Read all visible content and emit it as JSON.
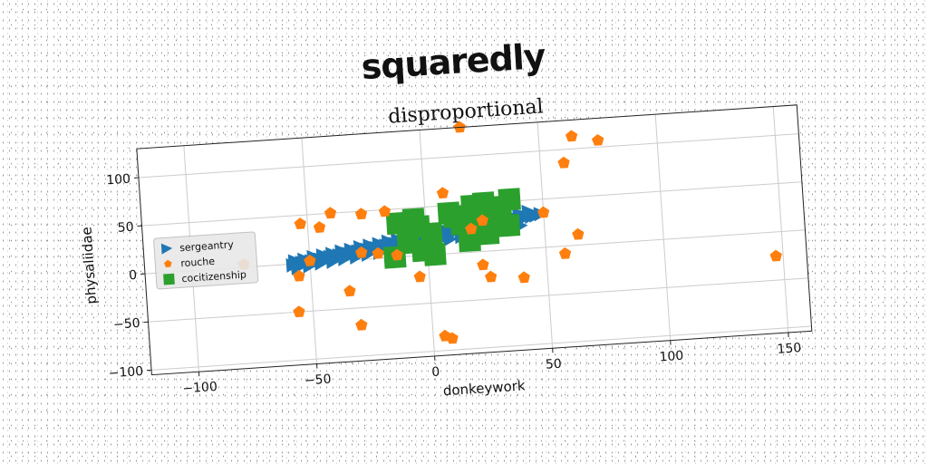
{
  "page": {
    "heading": "squaredly"
  },
  "chart_data": {
    "type": "scatter",
    "title": "disproportional",
    "xlabel": "donkeywork",
    "ylabel": "physaliidae",
    "xlim": [
      -120,
      160
    ],
    "ylim": [
      -105,
      130
    ],
    "xticks": [
      -100,
      -50,
      0,
      50,
      100,
      150
    ],
    "yticks": [
      -100,
      -50,
      0,
      50,
      100
    ],
    "xtick_labels": [
      "−100",
      "−50",
      "0",
      "50",
      "100",
      "150"
    ],
    "ytick_labels": [
      "−100",
      "−50",
      "0",
      "50",
      "100"
    ],
    "grid": true,
    "legend_position": "center-left",
    "series": [
      {
        "name": "sergeantry",
        "marker": "triangle-right",
        "color": "#1f77b4",
        "x": [
          -57,
          -55,
          -53,
          -51,
          -49,
          -47,
          -45,
          -43,
          -41,
          -39,
          -37,
          -35,
          -33,
          -31,
          -29,
          -27,
          -25,
          -23,
          -21,
          -19,
          -17,
          -15,
          -13,
          -11,
          -9,
          -7,
          -5,
          -3,
          -1,
          1,
          3,
          5,
          7,
          9,
          11,
          13,
          15,
          17,
          19,
          21,
          23,
          25,
          27,
          29,
          31,
          33,
          35,
          37,
          39,
          41,
          43,
          45,
          47,
          49,
          -56,
          -52,
          -48,
          -44,
          -40,
          -36,
          -32,
          -28,
          -24,
          -20,
          -16,
          -12,
          -8,
          -4,
          0,
          4,
          8,
          12,
          16,
          20,
          24,
          28,
          32,
          36,
          40,
          44,
          -55,
          -50,
          -45,
          -40,
          -35,
          -30,
          -25,
          -20,
          -15,
          -10,
          -5,
          0,
          5,
          10,
          15,
          20,
          25,
          30,
          35,
          40
        ],
        "y": [
          -1,
          0,
          1,
          1,
          2,
          3,
          3,
          4,
          5,
          5,
          6,
          7,
          7,
          8,
          9,
          9,
          10,
          11,
          11,
          12,
          13,
          13,
          14,
          15,
          15,
          16,
          17,
          17,
          18,
          19,
          19,
          20,
          21,
          21,
          22,
          23,
          23,
          24,
          25,
          25,
          26,
          27,
          27,
          28,
          29,
          29,
          30,
          31,
          31,
          32,
          33,
          33,
          34,
          35,
          3,
          4,
          6,
          7,
          8,
          10,
          11,
          13,
          14,
          15,
          17,
          18,
          20,
          21,
          22,
          24,
          25,
          27,
          28,
          29,
          31,
          32,
          34,
          35,
          36,
          38,
          -4,
          -3,
          -1,
          0,
          2,
          3,
          5,
          6,
          8,
          9,
          11,
          12,
          14,
          15,
          17,
          18,
          20,
          21,
          23,
          24
        ]
      },
      {
        "name": "rouche",
        "marker": "pentagon",
        "color": "#ff7f0e",
        "x": [
          17,
          64,
          75,
          60,
          8,
          -17,
          -27,
          -40,
          -45,
          -53,
          -55,
          -78,
          -50,
          -28,
          -21,
          -13,
          -4,
          23,
          26,
          40,
          58,
          64,
          -34,
          -56,
          -30,
          5,
          8,
          147,
          50,
          24,
          19
        ],
        "y": [
          130,
          113,
          107,
          86,
          63,
          48,
          47,
          50,
          36,
          41,
          -13,
          3,
          2,
          7,
          5,
          2,
          -22,
          -14,
          -27,
          -30,
          -8,
          11,
          -32,
          -50,
          -68,
          -85,
          -88,
          -25,
          36,
          32,
          24
        ]
      },
      {
        "name": "cocitizenship",
        "marker": "square",
        "color": "#2ca02c",
        "x": [
          -12,
          -5,
          -3,
          2,
          -8,
          -14,
          10,
          20,
          25,
          32,
          36,
          15,
          22,
          30,
          35,
          18,
          26,
          -2,
          3,
          12
        ],
        "y": [
          35,
          38,
          30,
          22,
          14,
          0,
          42,
          48,
          50,
          45,
          52,
          30,
          28,
          38,
          25,
          12,
          18,
          5,
          0,
          38
        ]
      }
    ]
  },
  "colors": {
    "axes_frame": "#222222",
    "grid": "#cccccc",
    "legend_bg": "#e8e8e8"
  }
}
